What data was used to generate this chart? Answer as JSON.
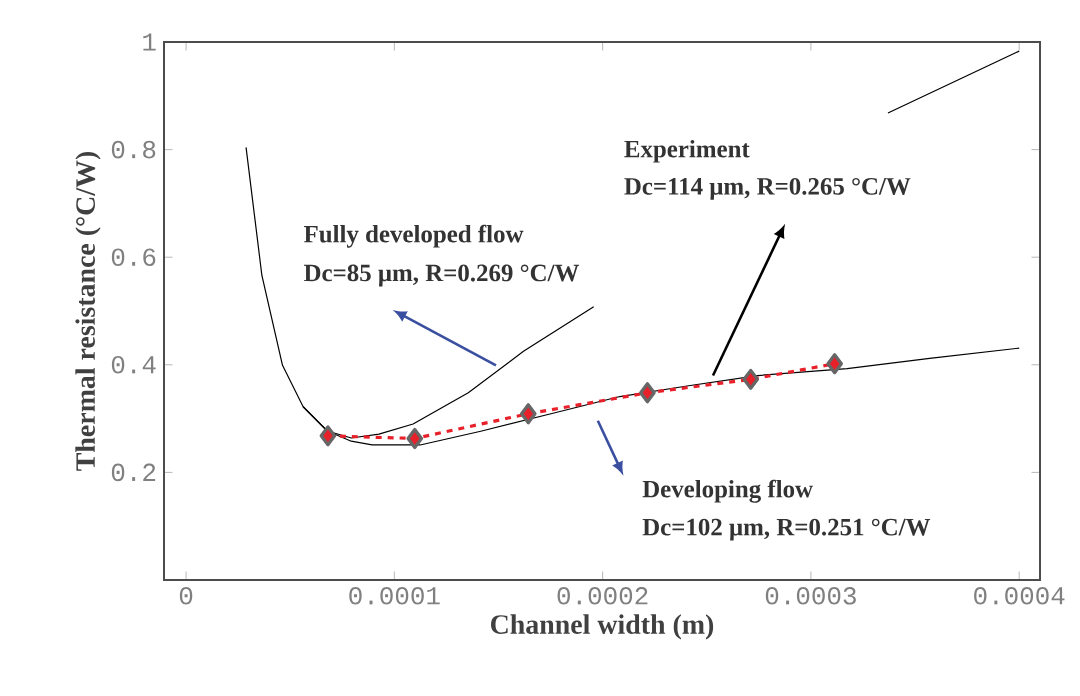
{
  "chart_data": {
    "type": "line",
    "xlabel": "Channel width (m)",
    "ylabel": "Thermal resistance (°C/W)",
    "xlim": [
      -1.06e-05,
      0.00041
    ],
    "ylim": [
      0,
      1
    ],
    "xticks": [
      0,
      0.0001,
      0.0002,
      0.0003,
      0.0004
    ],
    "yticks": [
      0.2,
      0.4,
      0.6,
      0.8,
      1
    ],
    "grid": false,
    "series": [
      {
        "color": "#000000",
        "marker": "none",
        "line_style": "solid",
        "x": [
          2.88e-05,
          3.64e-05,
          4.63e-05,
          5.62e-05,
          6.78e-05,
          7.93e-05,
          9.26e-05,
          0.000109,
          0.0001355,
          0.000162,
          0.0001957,
          0.0002446,
          0.000337,
          0.0004
        ],
        "values": [
          0.804,
          0.566,
          0.399,
          0.322,
          0.277,
          0.264,
          0.271,
          0.29,
          0.348,
          0.425,
          0.508,
          null,
          0.868,
          0.983
        ]
      },
      {
        "color": "#000000",
        "marker": "none",
        "line_style": "solid",
        "x": [
          5.62e-05,
          6.78e-05,
          7.93e-05,
          8.93e-05,
          0.0001124,
          0.000142,
          0.0001752,
          0.0002083,
          0.0002413,
          0.0002744,
          0.0003174,
          0.000357,
          0.0004
        ],
        "values": [
          0.322,
          0.277,
          0.258,
          0.251,
          0.251,
          0.277,
          0.309,
          0.341,
          0.361,
          0.38,
          0.393,
          0.412,
          0.431
        ]
      },
      {
        "color": "#e8202a",
        "marker": "diamond",
        "line_style": "dashed",
        "x": [
          6.81e-05,
          0.0001098,
          0.0001643,
          0.0002215,
          0.0002711,
          0.0003114
        ],
        "values": [
          0.268,
          0.263,
          0.309,
          0.348,
          0.373,
          0.402
        ]
      }
    ],
    "annotations": [
      "Experiment",
      "Dc=114  μm, R=0.265 °C/W",
      "Fully developed flow",
      "Dc=85  μm, R=0.269 °C/W",
      "Developing flow",
      "Dc=102  μm, R=0.251 °C/W"
    ]
  }
}
